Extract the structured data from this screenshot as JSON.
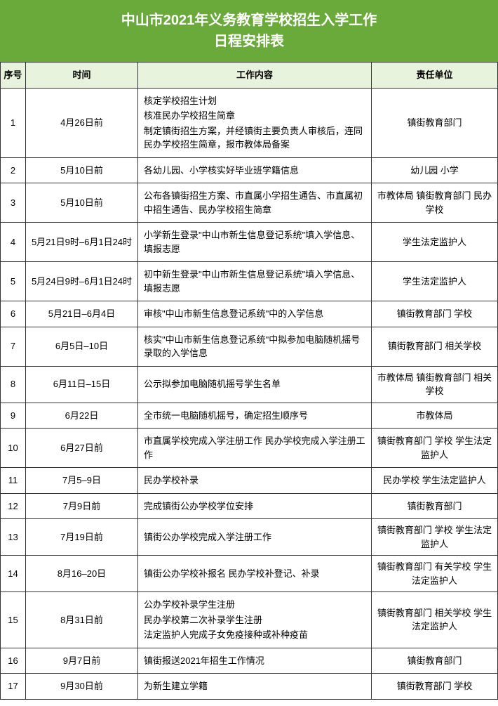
{
  "title_line1": "中山市2021年义务教育学校招生入学工作",
  "title_line2": "日程安排表",
  "columns": [
    "序号",
    "时间",
    "工作内容",
    "责任单位"
  ],
  "colors": {
    "header_bg": "#6aaa3a",
    "th_bg": "#e8f3dd",
    "border": "#333333",
    "text": "#000000"
  },
  "rows": [
    {
      "seq": "1",
      "time": "4月26日前",
      "work": [
        "核定学校招生计划",
        "核准民办学校招生简章",
        "制定镇街招生方案，并经镇街主要负责人审核后，连同民办学校招生简章，报市教体局备案"
      ],
      "resp": "镇街教育部门"
    },
    {
      "seq": "2",
      "time": "5月10日前",
      "work": [
        "各幼儿园、小学核实好毕业班学籍信息"
      ],
      "resp": "幼儿园 小学"
    },
    {
      "seq": "3",
      "time": "5月10日前",
      "work": [
        "公布各镇街招生方案、市直属小学招生通告、市直属初中招生通告、民办学校招生简章"
      ],
      "resp": "市教体局 镇街教育部门 民办学校"
    },
    {
      "seq": "4",
      "time": "5月21日9时–6月1日24时",
      "work": [
        "小学新生登录\"中山市新生信息登记系统\"填入学信息、填报志愿"
      ],
      "resp": "学生法定监护人"
    },
    {
      "seq": "5",
      "time": "5月24日9时–6月1日24时",
      "work": [
        "初中新生登录\"中山市新生信息登记系统\"填入学信息、填报志愿"
      ],
      "resp": "学生法定监护人"
    },
    {
      "seq": "6",
      "time": "5月21日–6月4日",
      "work": [
        "审核\"中山市新生信息登记系统\"中的入学信息"
      ],
      "resp": "镇街教育部门 学校"
    },
    {
      "seq": "7",
      "time": "6月5日–10日",
      "work": [
        "核实\"中山市新生信息登记系统\"中拟参加电脑随机摇号录取的入学信息"
      ],
      "resp": "镇街教育部门 相关学校"
    },
    {
      "seq": "8",
      "time": "6月11日–15日",
      "work": [
        "公示拟参加电脑随机摇号学生名单"
      ],
      "resp": "市教体局 镇街教育部门 相关学校"
    },
    {
      "seq": "9",
      "time": "6月22日",
      "work": [
        "全市统一电脑随机摇号，确定招生顺序号"
      ],
      "resp": "市教体局"
    },
    {
      "seq": "10",
      "time": "6月27日前",
      "work": [
        "市直属学校完成入学注册工作 民办学校完成入学注册工作"
      ],
      "resp": "镇街教育部门 学校 学生法定监护人"
    },
    {
      "seq": "11",
      "time": "7月5–9日",
      "work": [
        "民办学校补录"
      ],
      "resp": "民办学校 学生法定监护人"
    },
    {
      "seq": "12",
      "time": "7月9日前",
      "work": [
        "完成镇街公办学校学位安排"
      ],
      "resp": "镇街教育部门"
    },
    {
      "seq": "13",
      "time": "7月19日前",
      "work": [
        "镇街公办学校完成入学注册工作"
      ],
      "resp": "镇街教育部门 学校 学生法定监护人"
    },
    {
      "seq": "14",
      "time": "8月16–20日",
      "work": [
        "镇街公办学校补报名 民办学校补登记、补录"
      ],
      "resp": "镇街教育部门 有关学校 学生法定监护人"
    },
    {
      "seq": "15",
      "time": "8月31日前",
      "work": [
        "公办学校补录学生注册",
        "民办学校第二次补录学生注册",
        "法定监护人完成子女免疫接种或补种疫苗"
      ],
      "resp": "镇街教育部门 相关学校 学生法定监护人"
    },
    {
      "seq": "16",
      "time": "9月7日前",
      "work": [
        "镇街报送2021年招生工作情况"
      ],
      "resp": "镇街教育部门"
    },
    {
      "seq": "17",
      "time": "9月30日前",
      "work": [
        "为新生建立学籍"
      ],
      "resp": "镇街教育部门 学校"
    }
  ]
}
